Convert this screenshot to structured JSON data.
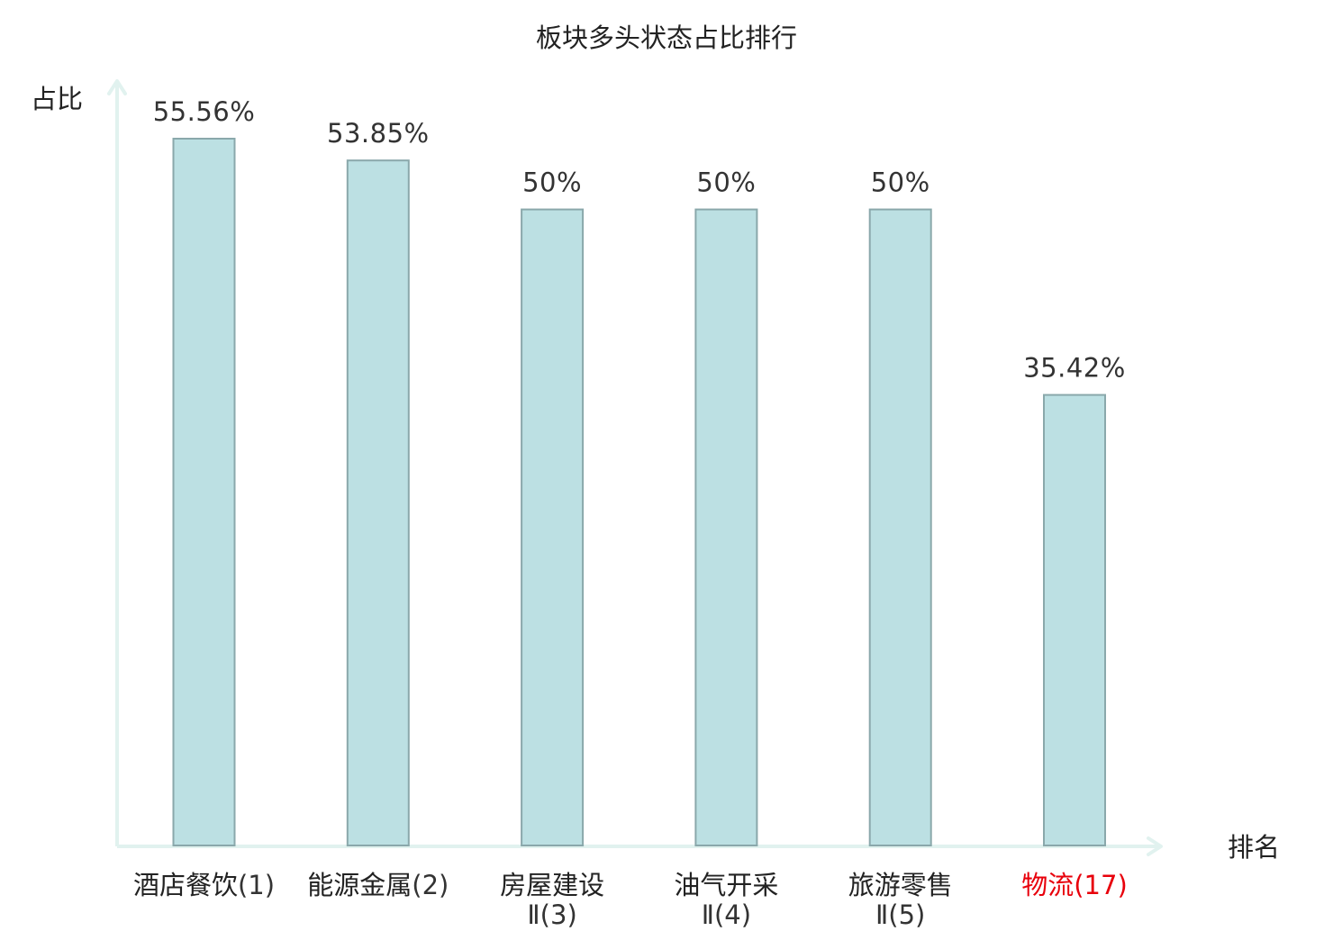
{
  "chart_data": {
    "type": "bar",
    "title": "板块多头状态占比排行",
    "xlabel": "排名",
    "ylabel": "占比",
    "categories": [
      {
        "name": "酒店餐饮",
        "suffix": "",
        "rank": "(1)",
        "highlight": false
      },
      {
        "name": "能源金属",
        "suffix": "",
        "rank": "(2)",
        "highlight": false
      },
      {
        "name": "房屋建设",
        "suffix": "Ⅱ",
        "rank": "(3)",
        "highlight": false
      },
      {
        "name": "油气开采",
        "suffix": "Ⅱ",
        "rank": "(4)",
        "highlight": false
      },
      {
        "name": "旅游零售",
        "suffix": "Ⅱ",
        "rank": "(5)",
        "highlight": false
      },
      {
        "name": "物流",
        "suffix": "",
        "rank": "(17)",
        "highlight": true
      }
    ],
    "values": [
      55.56,
      53.85,
      50,
      50,
      50,
      35.42
    ],
    "value_labels": [
      "55.56%",
      "53.85%",
      "50%",
      "50%",
      "50%",
      "35.42%"
    ],
    "ylim": [
      0,
      55.56
    ],
    "grid": false,
    "legend": "none",
    "colors": {
      "bar_fill": "#bce0e3",
      "bar_stroke": "#8aa8ab",
      "axis": "#e1f2ef",
      "text": "#222222",
      "rank_text": "#333333",
      "highlight": "#e8000b"
    }
  }
}
